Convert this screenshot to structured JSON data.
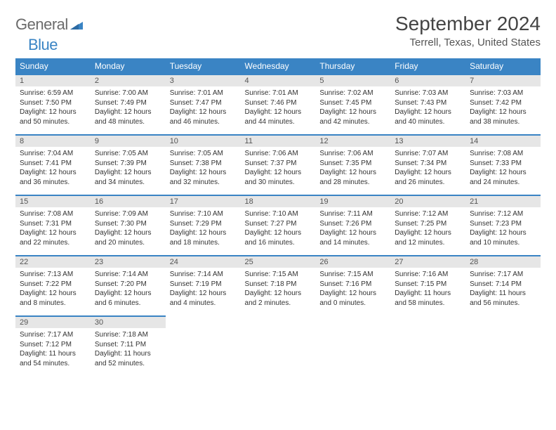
{
  "logo": {
    "general": "General",
    "blue": "Blue"
  },
  "title": "September 2024",
  "location": "Terrell, Texas, United States",
  "colors": {
    "accent": "#3a84c4",
    "daynum_bg": "#e6e6e6",
    "text": "#333333",
    "logo_gray": "#6b6b6b"
  },
  "dayHeaders": [
    "Sunday",
    "Monday",
    "Tuesday",
    "Wednesday",
    "Thursday",
    "Friday",
    "Saturday"
  ],
  "weeks": [
    [
      {
        "n": "1",
        "sr": "6:59 AM",
        "ss": "7:50 PM",
        "dl": "12 hours and 50 minutes."
      },
      {
        "n": "2",
        "sr": "7:00 AM",
        "ss": "7:49 PM",
        "dl": "12 hours and 48 minutes."
      },
      {
        "n": "3",
        "sr": "7:01 AM",
        "ss": "7:47 PM",
        "dl": "12 hours and 46 minutes."
      },
      {
        "n": "4",
        "sr": "7:01 AM",
        "ss": "7:46 PM",
        "dl": "12 hours and 44 minutes."
      },
      {
        "n": "5",
        "sr": "7:02 AM",
        "ss": "7:45 PM",
        "dl": "12 hours and 42 minutes."
      },
      {
        "n": "6",
        "sr": "7:03 AM",
        "ss": "7:43 PM",
        "dl": "12 hours and 40 minutes."
      },
      {
        "n": "7",
        "sr": "7:03 AM",
        "ss": "7:42 PM",
        "dl": "12 hours and 38 minutes."
      }
    ],
    [
      {
        "n": "8",
        "sr": "7:04 AM",
        "ss": "7:41 PM",
        "dl": "12 hours and 36 minutes."
      },
      {
        "n": "9",
        "sr": "7:05 AM",
        "ss": "7:39 PM",
        "dl": "12 hours and 34 minutes."
      },
      {
        "n": "10",
        "sr": "7:05 AM",
        "ss": "7:38 PM",
        "dl": "12 hours and 32 minutes."
      },
      {
        "n": "11",
        "sr": "7:06 AM",
        "ss": "7:37 PM",
        "dl": "12 hours and 30 minutes."
      },
      {
        "n": "12",
        "sr": "7:06 AM",
        "ss": "7:35 PM",
        "dl": "12 hours and 28 minutes."
      },
      {
        "n": "13",
        "sr": "7:07 AM",
        "ss": "7:34 PM",
        "dl": "12 hours and 26 minutes."
      },
      {
        "n": "14",
        "sr": "7:08 AM",
        "ss": "7:33 PM",
        "dl": "12 hours and 24 minutes."
      }
    ],
    [
      {
        "n": "15",
        "sr": "7:08 AM",
        "ss": "7:31 PM",
        "dl": "12 hours and 22 minutes."
      },
      {
        "n": "16",
        "sr": "7:09 AM",
        "ss": "7:30 PM",
        "dl": "12 hours and 20 minutes."
      },
      {
        "n": "17",
        "sr": "7:10 AM",
        "ss": "7:29 PM",
        "dl": "12 hours and 18 minutes."
      },
      {
        "n": "18",
        "sr": "7:10 AM",
        "ss": "7:27 PM",
        "dl": "12 hours and 16 minutes."
      },
      {
        "n": "19",
        "sr": "7:11 AM",
        "ss": "7:26 PM",
        "dl": "12 hours and 14 minutes."
      },
      {
        "n": "20",
        "sr": "7:12 AM",
        "ss": "7:25 PM",
        "dl": "12 hours and 12 minutes."
      },
      {
        "n": "21",
        "sr": "7:12 AM",
        "ss": "7:23 PM",
        "dl": "12 hours and 10 minutes."
      }
    ],
    [
      {
        "n": "22",
        "sr": "7:13 AM",
        "ss": "7:22 PM",
        "dl": "12 hours and 8 minutes."
      },
      {
        "n": "23",
        "sr": "7:14 AM",
        "ss": "7:20 PM",
        "dl": "12 hours and 6 minutes."
      },
      {
        "n": "24",
        "sr": "7:14 AM",
        "ss": "7:19 PM",
        "dl": "12 hours and 4 minutes."
      },
      {
        "n": "25",
        "sr": "7:15 AM",
        "ss": "7:18 PM",
        "dl": "12 hours and 2 minutes."
      },
      {
        "n": "26",
        "sr": "7:15 AM",
        "ss": "7:16 PM",
        "dl": "12 hours and 0 minutes."
      },
      {
        "n": "27",
        "sr": "7:16 AM",
        "ss": "7:15 PM",
        "dl": "11 hours and 58 minutes."
      },
      {
        "n": "28",
        "sr": "7:17 AM",
        "ss": "7:14 PM",
        "dl": "11 hours and 56 minutes."
      }
    ],
    [
      {
        "n": "29",
        "sr": "7:17 AM",
        "ss": "7:12 PM",
        "dl": "11 hours and 54 minutes."
      },
      {
        "n": "30",
        "sr": "7:18 AM",
        "ss": "7:11 PM",
        "dl": "11 hours and 52 minutes."
      },
      null,
      null,
      null,
      null,
      null
    ]
  ],
  "labels": {
    "sunrise": "Sunrise: ",
    "sunset": "Sunset: ",
    "daylight": "Daylight: "
  }
}
